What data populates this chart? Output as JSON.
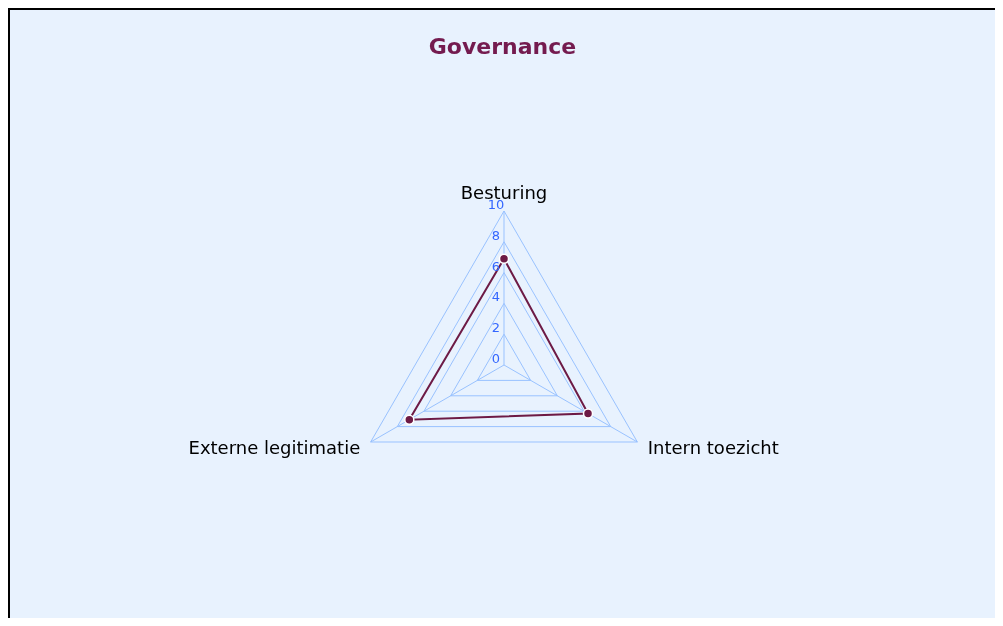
{
  "chart_data": {
    "type": "radar",
    "title": "Governance",
    "categories": [
      "Besturing",
      "Intern toezicht",
      "Externe legitimatie"
    ],
    "series": [
      {
        "color": "#6d1a45",
        "values": [
          6.9,
          6.3,
          7.1
        ]
      }
    ],
    "ylim": [
      0,
      10
    ],
    "yticks": [
      0,
      2,
      4,
      6,
      8,
      10
    ],
    "grid": true,
    "marker": "circle"
  }
}
